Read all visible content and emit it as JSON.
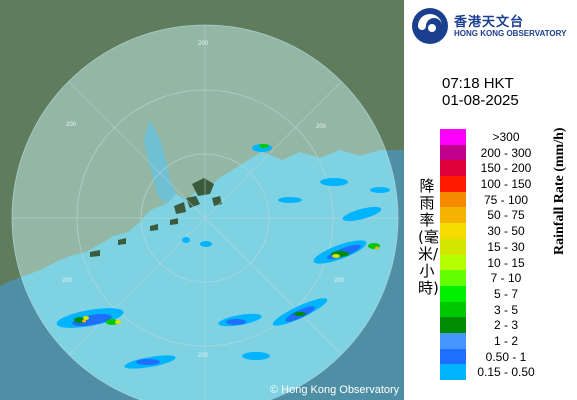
{
  "header": {
    "logo_zh": "香港天文台",
    "logo_en": "HONG KONG OBSERVATORY"
  },
  "timestamp": {
    "time": "07:18 HKT",
    "date": "01-08-2025"
  },
  "legend": {
    "title_zh": "降雨率(毫米/小時)",
    "title_en": "Rainfall Rate (mm/h)",
    "entries": [
      {
        "label": ">300",
        "color": "#ff00ff"
      },
      {
        "label": "200 - 300",
        "color": "#c0008a"
      },
      {
        "label": "150 - 200",
        "color": "#e0003c"
      },
      {
        "label": "100 - 150",
        "color": "#ff1a00"
      },
      {
        "label": "75 - 100",
        "color": "#f58a00"
      },
      {
        "label": "50 - 75",
        "color": "#f5b400"
      },
      {
        "label": "30 - 50",
        "color": "#f5dc00"
      },
      {
        "label": "15 - 30",
        "color": "#d2e600"
      },
      {
        "label": "10 - 15",
        "color": "#b4ff00"
      },
      {
        "label": "7 - 10",
        "color": "#64ff00"
      },
      {
        "label": "5 - 7",
        "color": "#00f000"
      },
      {
        "label": "3 - 5",
        "color": "#00c800"
      },
      {
        "label": "2 - 3",
        "color": "#008c00"
      },
      {
        "label": "1 - 2",
        "color": "#4696ff"
      },
      {
        "label": "0.50 - 1",
        "color": "#1e6eff"
      },
      {
        "label": "0.15 - 0.50",
        "color": "#00b4ff"
      }
    ]
  },
  "map": {
    "range_ring_labels": [
      "200",
      "200",
      "200",
      "200",
      "200",
      "200"
    ],
    "copyright": "© Hong Kong Observatory",
    "colors": {
      "sea": "#4f8fa6",
      "radar_sea": "#7fd2e2",
      "land": "#5a7a5a",
      "radar_land": "#8fb5a5"
    }
  }
}
